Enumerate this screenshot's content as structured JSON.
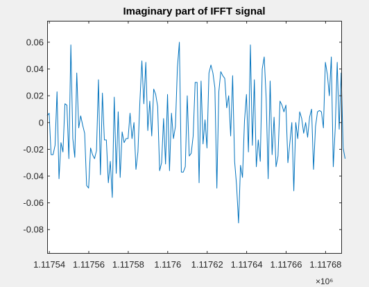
{
  "chart_data": {
    "type": "line",
    "title": "Imaginary part of IFFT signal",
    "xlabel": "",
    "ylabel": "",
    "x_multiplier": "×10⁶",
    "xlim": [
      1117538.9,
      1117688.3
    ],
    "ylim": [
      -0.098,
      0.076
    ],
    "xticks": [
      1117540,
      1117560,
      1117580,
      1117600,
      1117620,
      1117640,
      1117660,
      1117680
    ],
    "xtick_labels": [
      "1.11754",
      "1.11756",
      "1.11758",
      "1.1176",
      "1.11762",
      "1.11764",
      "1.11766",
      "1.11768"
    ],
    "yticks": [
      0.06,
      0.04,
      0.02,
      0,
      -0.02,
      -0.04,
      -0.06,
      -0.08
    ],
    "ytick_labels": [
      "0.06",
      "0.04",
      "0.02",
      "0",
      "-0.02",
      "-0.04",
      "-0.06",
      "-0.08"
    ],
    "grid": false,
    "line_color": "#0072bd",
    "series": [
      {
        "x_start": 1117538.9,
        "x_step": 1.0,
        "values": [
          0.005,
          0.007,
          -0.024,
          -0.024,
          -0.017,
          0.023,
          -0.042,
          -0.015,
          -0.022,
          0.014,
          0.013,
          -0.027,
          0.058,
          -0.012,
          -0.026,
          0.037,
          -0.004,
          0.005,
          -0.002,
          -0.008,
          -0.047,
          -0.049,
          -0.019,
          -0.024,
          -0.027,
          -0.021,
          0.032,
          -0.039,
          0.022,
          -0.013,
          -0.013,
          -0.045,
          -0.029,
          -0.056,
          0.019,
          -0.038,
          0.008,
          -0.041,
          -0.007,
          -0.015,
          -0.012,
          -0.012,
          0.007,
          -0.012,
          0.0,
          -0.035,
          -0.022,
          0.016,
          0.046,
          0.014,
          0.045,
          -0.006,
          0.016,
          -0.01,
          0.025,
          0.021,
          0.012,
          -0.036,
          -0.03,
          0.003,
          -0.031,
          0.021,
          -0.036,
          0.007,
          -0.012,
          -0.003,
          0.041,
          0.06,
          -0.037,
          -0.037,
          -0.033,
          0.02,
          -0.025,
          -0.023,
          -0.01,
          0.03,
          0.03,
          -0.045,
          0.031,
          -0.016,
          0.002,
          -0.019,
          0.037,
          0.043,
          0.037,
          0.026,
          -0.049,
          0.023,
          0.038,
          0.035,
          0.033,
          0.011,
          0.02,
          -0.01,
          0.035,
          -0.029,
          -0.047,
          -0.075,
          -0.032,
          -0.041,
          0.001,
          0.021,
          -0.022,
          0.058,
          -0.017,
          0.032,
          -0.033,
          -0.013,
          -0.029,
          0.04,
          0.049,
          0.018,
          -0.042,
          0.031,
          -0.024,
          0.004,
          -0.033,
          -0.025,
          0.016,
          0.013,
          0.008,
          0.013,
          -0.03,
          -0.015,
          0.0,
          -0.051,
          0.0,
          -0.012,
          0.008,
          0.003,
          -0.008,
          0.0,
          -0.011,
          0.004,
          0.01,
          -0.035,
          -0.003,
          0.008,
          0.009,
          0.008,
          -0.004,
          0.045,
          0.036,
          0.02,
          0.049,
          -0.033,
          -0.004,
          0.045,
          -0.005,
          0.037,
          -0.019,
          -0.027
        ]
      }
    ]
  }
}
